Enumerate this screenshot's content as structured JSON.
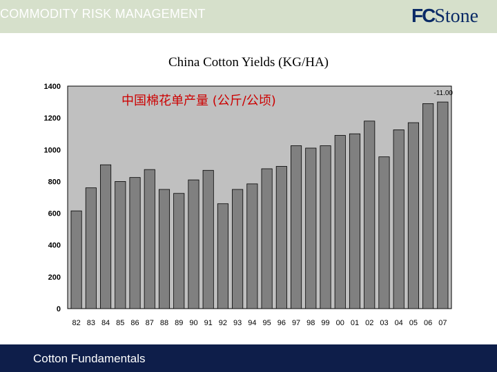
{
  "header": {
    "title": "COMMODITY RISK MANAGEMENT",
    "logo_fc": "FC",
    "logo_stone": "Stone"
  },
  "footer": {
    "text": "Cotton Fundamentals"
  },
  "colors": {
    "header_bg": "#d6e0cb",
    "footer_bg": "#0e1e4a",
    "bar_fill": "#808080",
    "plot_bg": "#c0c0c0",
    "subtitle_color": "#cc0000"
  },
  "chart_data": {
    "type": "bar",
    "title": "China Cotton Yields (KG/HA)",
    "subtitle": "中国棉花单产量 (公斤/公顷)",
    "annotation": "-11.00",
    "categories": [
      "82",
      "83",
      "84",
      "85",
      "86",
      "87",
      "88",
      "89",
      "90",
      "91",
      "92",
      "93",
      "94",
      "95",
      "96",
      "97",
      "98",
      "99",
      "00",
      "01",
      "02",
      "03",
      "04",
      "05",
      "06",
      "07"
    ],
    "values": [
      615,
      760,
      905,
      800,
      825,
      875,
      750,
      725,
      810,
      870,
      660,
      750,
      785,
      880,
      895,
      1025,
      1010,
      1025,
      1090,
      1100,
      1180,
      955,
      1125,
      1170,
      1290,
      1300
    ],
    "yticks": [
      "0",
      "200",
      "400",
      "600",
      "800",
      "1000",
      "1200",
      "1400"
    ],
    "ylim": [
      0,
      1400
    ],
    "grid": false,
    "legend": "none"
  }
}
